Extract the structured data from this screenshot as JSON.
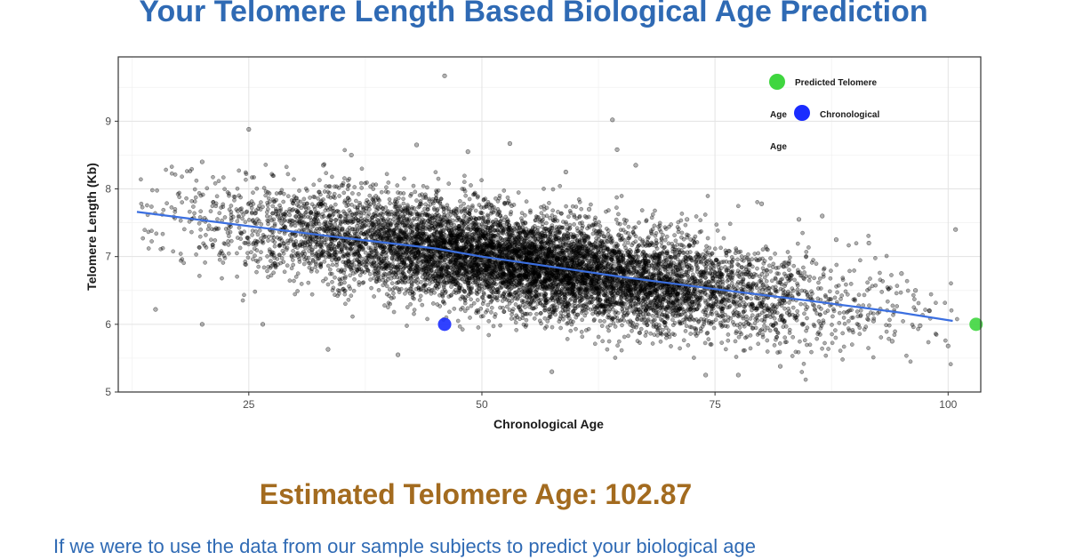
{
  "page": {
    "title": "Your Telomere Length Based Biological Age Prediction",
    "estimate_label": "Estimated Telomere Age:",
    "estimate_value": "102.87",
    "paragraph": "If we were to use the data from our sample subjects to predict your biological age"
  },
  "colors": {
    "title": "#2f6ab4",
    "estimate": "#a36b1f",
    "paragraph": "#2f6ab4",
    "predicted_point": "#3fd63f",
    "chronological_point": "#1a2cff",
    "trend_line": "#3b6fe0",
    "scatter_points": "#000000"
  },
  "chart_data": {
    "type": "scatter",
    "title": "",
    "xlabel": "Chronological Age",
    "ylabel": "Telomere Length (Kb)",
    "xlim": [
      11,
      103.5
    ],
    "ylim": [
      5,
      9.95
    ],
    "x_ticks": [
      25,
      50,
      75,
      100
    ],
    "y_ticks": [
      5,
      6,
      7,
      8,
      9
    ],
    "grid": true,
    "legend_position": "top-right",
    "legend": {
      "line1": "Predicted Telomere",
      "line2a": "Age",
      "line2b": "Chronological",
      "line3": "Age"
    },
    "sample_cloud": {
      "x_range": [
        13,
        101
      ],
      "points_approx": 9000,
      "description_trend": "dense cloud of subject samples"
    },
    "trend_line": {
      "x": [
        13,
        25,
        35,
        45,
        50,
        55,
        65,
        75,
        85,
        95,
        100.5
      ],
      "y": [
        7.66,
        7.45,
        7.28,
        7.12,
        7.0,
        6.9,
        6.7,
        6.52,
        6.35,
        6.17,
        6.05
      ]
    },
    "outliers": [
      [
        46,
        9.67
      ],
      [
        64,
        9.02
      ],
      [
        25,
        8.88
      ],
      [
        43,
        8.65
      ],
      [
        53,
        8.67
      ],
      [
        64.5,
        8.58
      ],
      [
        66.5,
        8.35
      ],
      [
        59,
        8.25
      ],
      [
        33,
        8.35
      ],
      [
        20,
        8.4
      ],
      [
        36,
        8.5
      ],
      [
        48.5,
        8.55
      ],
      [
        15,
        6.22
      ],
      [
        20,
        6.0
      ],
      [
        26.5,
        6.0
      ],
      [
        33.5,
        5.63
      ],
      [
        41,
        5.55
      ],
      [
        57.5,
        5.3
      ],
      [
        74,
        5.25
      ],
      [
        77.5,
        5.25
      ],
      [
        82,
        5.38
      ],
      [
        94,
        5.75
      ],
      [
        100,
        5.68
      ],
      [
        100.8,
        7.4
      ],
      [
        91.5,
        7.2
      ],
      [
        88,
        7.25
      ],
      [
        86.5,
        7.6
      ],
      [
        80,
        7.78
      ],
      [
        72,
        7.55
      ],
      [
        84,
        7.55
      ],
      [
        61.5,
        7.7
      ],
      [
        95,
        6.75
      ],
      [
        96.5,
        6.5
      ],
      [
        98,
        6.2
      ],
      [
        97,
        5.98
      ],
      [
        92,
        6.05
      ]
    ],
    "highlights": [
      {
        "name": "Predicted Telomere Age",
        "x": 103,
        "y": 6.0,
        "color": "#3fd63f"
      },
      {
        "name": "Chronological Age",
        "x": 46,
        "y": 6.0,
        "color": "#1a2cff"
      }
    ]
  }
}
